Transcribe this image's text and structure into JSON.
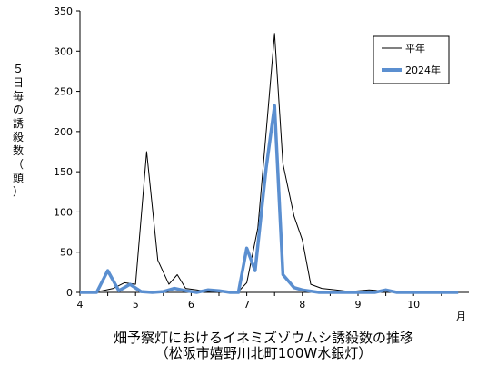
{
  "chart_data": {
    "type": "line",
    "title_lines": [
      "畑予察灯におけるイネミズゾウムシ誘殺数の推移",
      "（松阪市嬉野川北町100W水銀灯）"
    ],
    "ylabel": "５日毎の誘殺数（頭）",
    "xunit": "月",
    "ylim": [
      0,
      350
    ],
    "xlim": [
      4,
      10.9
    ],
    "yticks": [
      0,
      50,
      100,
      150,
      200,
      250,
      300,
      350
    ],
    "xticks": [
      4,
      5,
      6,
      7,
      8,
      9,
      10
    ],
    "legend_position": "top-right",
    "grid": false,
    "series": [
      {
        "name": "平年",
        "color": "#000000",
        "style": "thin",
        "points": [
          [
            4.0,
            0
          ],
          [
            4.2,
            0
          ],
          [
            4.4,
            2
          ],
          [
            4.6,
            5
          ],
          [
            4.8,
            12
          ],
          [
            5.0,
            10
          ],
          [
            5.2,
            175
          ],
          [
            5.4,
            40
          ],
          [
            5.6,
            10
          ],
          [
            5.75,
            22
          ],
          [
            5.9,
            5
          ],
          [
            6.1,
            3
          ],
          [
            6.3,
            1
          ],
          [
            6.5,
            2
          ],
          [
            6.7,
            0
          ],
          [
            6.85,
            1
          ],
          [
            7.0,
            12
          ],
          [
            7.2,
            80
          ],
          [
            7.35,
            200
          ],
          [
            7.5,
            322
          ],
          [
            7.65,
            160
          ],
          [
            7.85,
            95
          ],
          [
            8.0,
            65
          ],
          [
            8.15,
            10
          ],
          [
            8.35,
            5
          ],
          [
            8.6,
            3
          ],
          [
            8.85,
            1
          ],
          [
            9.2,
            3
          ],
          [
            9.6,
            1
          ],
          [
            10.0,
            0
          ],
          [
            10.4,
            0
          ],
          [
            10.8,
            0
          ]
        ]
      },
      {
        "name": "2024年",
        "color": "#5b8fd0",
        "style": "thick",
        "points": [
          [
            4.0,
            0
          ],
          [
            4.3,
            0
          ],
          [
            4.5,
            27
          ],
          [
            4.7,
            2
          ],
          [
            4.9,
            10
          ],
          [
            5.1,
            1
          ],
          [
            5.3,
            0
          ],
          [
            5.5,
            1
          ],
          [
            5.7,
            5
          ],
          [
            5.9,
            2
          ],
          [
            6.1,
            0
          ],
          [
            6.3,
            3
          ],
          [
            6.5,
            2
          ],
          [
            6.7,
            0
          ],
          [
            6.85,
            0
          ],
          [
            7.0,
            55
          ],
          [
            7.15,
            27
          ],
          [
            7.35,
            155
          ],
          [
            7.5,
            232
          ],
          [
            7.65,
            22
          ],
          [
            7.85,
            6
          ],
          [
            8.0,
            3
          ],
          [
            8.3,
            0
          ],
          [
            8.7,
            0
          ],
          [
            9.0,
            0
          ],
          [
            9.3,
            0
          ],
          [
            9.5,
            3
          ],
          [
            9.7,
            0
          ],
          [
            10.0,
            0
          ],
          [
            10.4,
            0
          ],
          [
            10.8,
            0
          ]
        ]
      }
    ]
  }
}
